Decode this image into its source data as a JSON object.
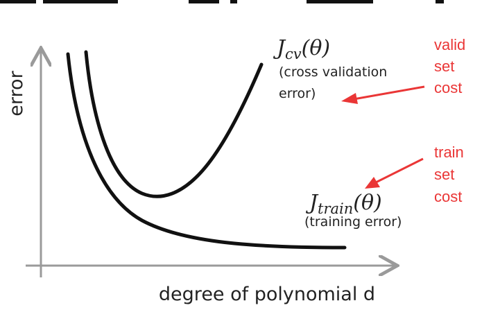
{
  "axes": {
    "y_label": "error",
    "x_label": "degree of polynomial d",
    "axis_color": "#9a9a9a"
  },
  "cv_curve": {
    "symbol": "J",
    "subscript": "cv",
    "argument": "(θ)",
    "caption_line1": "(cross validation",
    "caption_line2": "error)"
  },
  "train_curve": {
    "symbol": "J",
    "subscript": "train",
    "argument": "(θ)",
    "caption": "(training error)"
  },
  "annotations": {
    "color": "#ea3636",
    "valid": [
      "valid",
      "set",
      "cost"
    ],
    "train": [
      "train",
      "set",
      "cost"
    ]
  },
  "curve_color": "#111111"
}
